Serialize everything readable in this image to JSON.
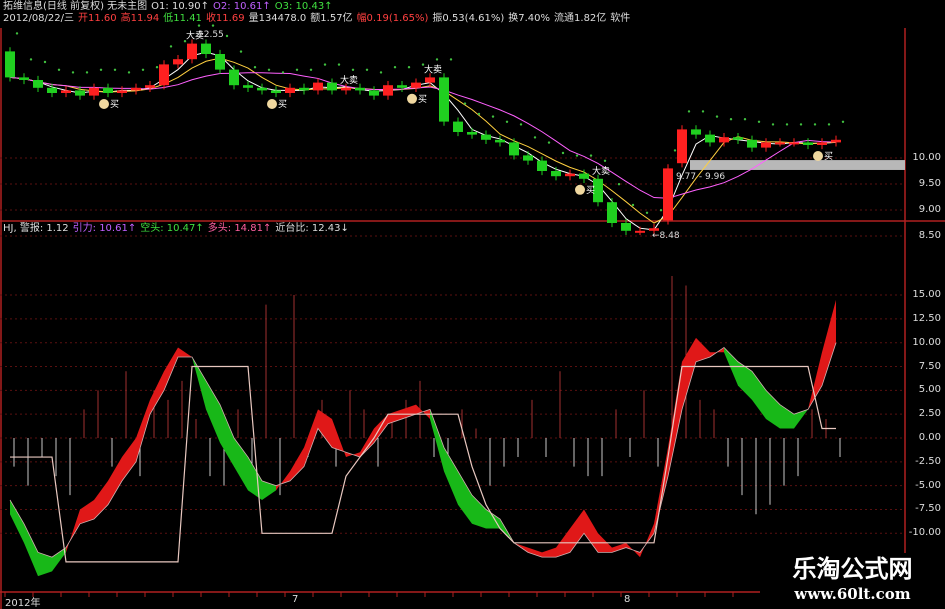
{
  "header": {
    "line1": [
      {
        "text": "拓维信息(日线 前复权) 无未主图",
        "color": "w"
      },
      {
        "text": "O1: 10.90↑",
        "color": "w"
      },
      {
        "text": "O2: 10.61↑",
        "color": "p"
      },
      {
        "text": "O3: 10.43↑",
        "color": "g"
      }
    ],
    "line2": [
      {
        "text": "2012/08/22/三",
        "color": "w"
      },
      {
        "text": "开11.60",
        "color": "r"
      },
      {
        "text": "高11.94",
        "color": "r"
      },
      {
        "text": "低11.41",
        "color": "g"
      },
      {
        "text": "收11.69",
        "color": "r"
      },
      {
        "text": "量134478.0",
        "color": "w"
      },
      {
        "text": "额1.57亿",
        "color": "w"
      },
      {
        "text": "幅0.19(1.65%)",
        "color": "r"
      },
      {
        "text": "振0.53(4.61%)",
        "color": "w"
      },
      {
        "text": "换7.40%",
        "color": "w"
      },
      {
        "text": "流通1.82亿",
        "color": "w"
      },
      {
        "text": "软件",
        "color": "w"
      }
    ]
  },
  "indicator_header": [
    {
      "text": "HJ, 警报: 1.12",
      "color": "w"
    },
    {
      "text": "引力: 10.61↑",
      "color": "p"
    },
    {
      "text": "空头: 10.47↑",
      "color": "g"
    },
    {
      "text": "多头: 14.81↑",
      "color": "m"
    },
    {
      "text": "近台比: 12.43↓",
      "color": "w"
    }
  ],
  "price_axis": [
    "10.00",
    "9.50",
    "9.00",
    "8.50"
  ],
  "indicator_axis": [
    "15.00",
    "12.50",
    "10.00",
    "7.50",
    "5.00",
    "2.50",
    "0.00",
    "-2.50",
    "-5.00",
    "-7.50",
    "-10.00"
  ],
  "time_axis": [
    "2012年",
    "7",
    "8"
  ],
  "annotations": {
    "high_label": "12.55",
    "low_label": "←8.48",
    "band_label": "9.77 - 9.96",
    "sell": "大卖",
    "buy": "买"
  },
  "watermark": {
    "name": "乐淘公式网",
    "url": "www.60lt.com"
  },
  "colors": {
    "up": "#ff2020",
    "down": "#20d020",
    "band": "#b8b8b8",
    "grid": "#5a1010",
    "border": "#b02020"
  },
  "chart_data": [
    {
      "type": "candlestick",
      "ylim": [
        8.5,
        12.6
      ],
      "ticks": [
        10.0,
        9.5,
        9.0,
        8.5
      ],
      "open": [
        12.05,
        11.55,
        11.5,
        11.35,
        11.25,
        11.3,
        11.2,
        11.35,
        11.25,
        11.3,
        11.35,
        11.4,
        11.8,
        11.9,
        12.2,
        12.0,
        11.7,
        11.4,
        11.35,
        11.3,
        11.25,
        11.35,
        11.3,
        11.45,
        11.3,
        11.35,
        11.3,
        11.2,
        11.4,
        11.35,
        11.45,
        11.55,
        10.7,
        10.5,
        10.45,
        10.35,
        10.3,
        10.05,
        9.95,
        9.75,
        9.65,
        9.7,
        9.6,
        9.15,
        8.75,
        8.6,
        8.6,
        8.8,
        9.9,
        10.55,
        10.45,
        10.3,
        10.4,
        10.35,
        10.2,
        10.3,
        10.3,
        10.3,
        10.25,
        10.3
      ],
      "close": [
        11.55,
        11.5,
        11.35,
        11.25,
        11.3,
        11.2,
        11.35,
        11.25,
        11.3,
        11.35,
        11.4,
        11.8,
        11.9,
        12.2,
        12.0,
        11.7,
        11.4,
        11.35,
        11.3,
        11.25,
        11.35,
        11.3,
        11.45,
        11.3,
        11.35,
        11.3,
        11.2,
        11.4,
        11.35,
        11.45,
        11.55,
        10.7,
        10.5,
        10.45,
        10.35,
        10.3,
        10.05,
        9.95,
        9.75,
        9.65,
        9.7,
        9.6,
        9.15,
        8.75,
        8.6,
        8.6,
        8.65,
        9.8,
        10.55,
        10.45,
        10.3,
        10.4,
        10.35,
        10.2,
        10.3,
        10.3,
        10.3,
        10.25,
        10.3,
        10.35
      ],
      "high_point": 12.55,
      "low_point": 8.48,
      "band": [
        9.77,
        9.96
      ],
      "sell_signals_at_bar": [
        13,
        24,
        30,
        42
      ],
      "buy_signals_at_bar": [
        7,
        19,
        29,
        41,
        58
      ]
    },
    {
      "type": "area",
      "ylim": [
        -15,
        17
      ],
      "ticks": [
        15,
        12.5,
        10,
        7.5,
        5,
        2.5,
        0,
        -2.5,
        -5,
        -7.5,
        -10
      ],
      "line_a": [
        -8,
        -11,
        -14.5,
        -14,
        -12,
        -7.5,
        -6.5,
        -4.5,
        -2,
        0,
        4,
        7,
        9.5,
        8.5,
        3,
        -0.5,
        -3,
        -5.5,
        -6.5,
        -5.5,
        -3.5,
        -1,
        3,
        2,
        -2,
        -1.5,
        1,
        2.5,
        3,
        3.5,
        2,
        -3.5,
        -7,
        -9,
        -9.5,
        -9.5,
        -11,
        -11.5,
        -12,
        -11.5,
        -9.5,
        -7.5,
        -10,
        -11.5,
        -11,
        -12.5,
        -9,
        -1,
        8,
        10.5,
        9,
        9,
        5.5,
        4,
        2,
        1,
        1,
        3,
        9,
        14.5
      ],
      "line_b": [
        -6.5,
        -9,
        -12,
        -12.5,
        -11.5,
        -9,
        -8.5,
        -7,
        -4.5,
        -2.5,
        2.5,
        5,
        8.5,
        8.5,
        6,
        3.5,
        0,
        -2,
        -4.5,
        -5,
        -4.5,
        -3,
        1,
        -1,
        -1.5,
        -2,
        -0.5,
        1.5,
        2,
        2.5,
        3,
        -1,
        -3.5,
        -6,
        -7.5,
        -8.5,
        -11,
        -12,
        -12.5,
        -12.5,
        -12,
        -10,
        -12,
        -12,
        -11.5,
        -12,
        -10,
        -4,
        3,
        8,
        8.5,
        9.5,
        8,
        7,
        5,
        3.5,
        2.5,
        3,
        5.5,
        10
      ],
      "step_line": [
        -2,
        -2,
        -2,
        -2,
        -13,
        -13,
        -13,
        -13,
        -13,
        -13,
        -13,
        -13,
        -13,
        7.5,
        7.5,
        7.5,
        7.5,
        7.5,
        -10,
        -10,
        -10,
        -10,
        -10,
        -10,
        -4,
        -2,
        0,
        2.5,
        2.5,
        2.5,
        2.5,
        2.5,
        2.5,
        -3,
        -7,
        -9.5,
        -11,
        -11,
        -11,
        -11,
        -11,
        -11,
        -11,
        -11,
        -11,
        -11,
        -11,
        -2,
        7.5,
        7.5,
        7.5,
        7.5,
        7.5,
        7.5,
        7.5,
        7.5,
        7.5,
        7.5,
        1,
        1
      ],
      "bars": [
        -3,
        -5,
        -2,
        -4,
        -6,
        3,
        5,
        -3,
        7,
        -4,
        5,
        4,
        6,
        2,
        -4,
        -5,
        3,
        -3,
        14,
        -6,
        15,
        -2,
        4,
        -3,
        5,
        3,
        -3,
        2,
        4,
        6,
        -2,
        -4,
        3,
        1,
        -5,
        -3,
        -2,
        4,
        -2,
        7,
        -3,
        -4,
        -4,
        3,
        -2,
        5,
        -3,
        17,
        16,
        4,
        3,
        -3,
        -6,
        -8,
        -7,
        -5,
        -4,
        3,
        2,
        -2
      ]
    }
  ]
}
